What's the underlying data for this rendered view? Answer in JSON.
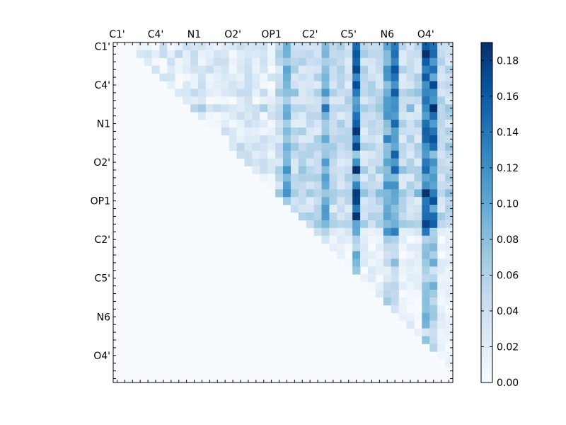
{
  "chart_data": {
    "type": "heatmap",
    "title": "",
    "xlabel": "",
    "ylabel": "",
    "grid": false,
    "matrix_size": 44,
    "mask": "upper-triangle",
    "x_ticklabels": [
      "C1'",
      "C4'",
      "N1",
      "O2'",
      "OP1",
      "C2'",
      "C5'",
      "N6",
      "O4'"
    ],
    "y_ticklabels": [
      "C1'",
      "C4'",
      "N1",
      "O2'",
      "OP1",
      "C2'",
      "C5'",
      "N6",
      "O4'"
    ],
    "tick_label_every": 5,
    "colormap": "Blues",
    "colorbar": {
      "range": [
        0.0,
        0.19
      ],
      "ticks": [
        0.0,
        0.02,
        0.04,
        0.06,
        0.08,
        0.1,
        0.12,
        0.14,
        0.16,
        0.18
      ],
      "tick_labels": [
        "0.00",
        "0.02",
        "0.04",
        "0.06",
        "0.08",
        "0.10",
        "0.12",
        "0.14",
        "0.16",
        "0.18"
      ]
    },
    "colors": {
      "min": "#f7fbff",
      "max": "#08306b"
    }
  }
}
